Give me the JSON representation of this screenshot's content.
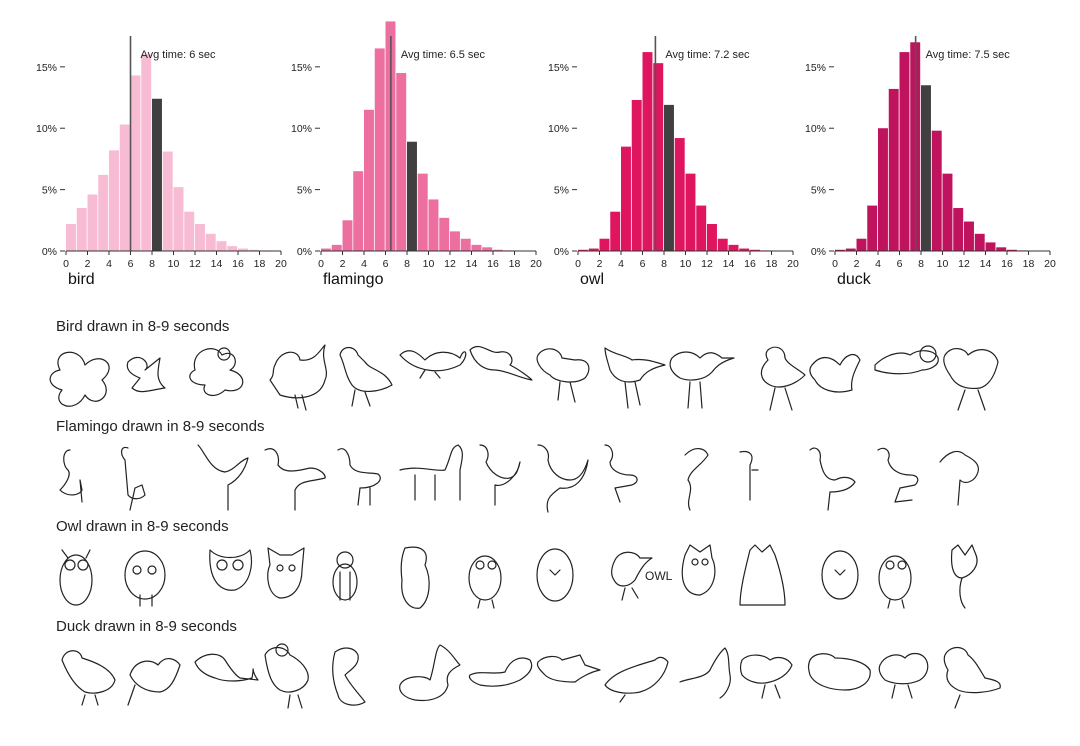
{
  "chart_data": [
    {
      "type": "bar",
      "label": "bird",
      "avg_label": "Avg time: 6 sec",
      "avg_value": 6,
      "color": "#f7bcd4",
      "highlight_color": "#404040",
      "highlight_bin": 8,
      "bin_width": 1,
      "bins": [
        0,
        1,
        2,
        3,
        4,
        5,
        6,
        7,
        8,
        9,
        10,
        11,
        12,
        13,
        14,
        15,
        16,
        17,
        18,
        19
      ],
      "values": [
        2.2,
        3.5,
        4.6,
        6.2,
        8.2,
        10.3,
        14.3,
        16.0,
        12.4,
        8.1,
        5.2,
        3.2,
        2.2,
        1.4,
        0.8,
        0.4,
        0.2,
        0.1,
        0.05,
        0.0
      ],
      "xlim": [
        0,
        20
      ],
      "ylim": [
        0,
        18
      ],
      "x_ticks": [
        "0",
        "2",
        "4",
        "6",
        "8",
        "10",
        "12",
        "14",
        "16",
        "18",
        "20"
      ],
      "y_ticks": [
        "0%",
        "5%",
        "10%",
        "15%"
      ]
    },
    {
      "type": "bar",
      "label": "flamingo",
      "avg_label": "Avg time: 6.5 sec",
      "avg_value": 6.5,
      "color": "#ec6fa0",
      "highlight_color": "#404040",
      "highlight_bin": 8,
      "bin_width": 1,
      "bins": [
        0,
        1,
        2,
        3,
        4,
        5,
        6,
        7,
        8,
        9,
        10,
        11,
        12,
        13,
        14,
        15,
        16,
        17,
        18,
        19
      ],
      "values": [
        0.2,
        0.5,
        2.5,
        6.5,
        11.5,
        16.5,
        18.7,
        14.5,
        8.9,
        6.3,
        4.2,
        2.7,
        1.6,
        1.0,
        0.5,
        0.3,
        0.1,
        0.05,
        0.0,
        0.0
      ],
      "xlim": [
        0,
        20
      ],
      "ylim": [
        0,
        18
      ],
      "x_ticks": [
        "0",
        "2",
        "4",
        "6",
        "8",
        "10",
        "12",
        "14",
        "16",
        "18",
        "20"
      ],
      "y_ticks": [
        "0%",
        "5%",
        "10%",
        "15%"
      ]
    },
    {
      "type": "bar",
      "label": "owl",
      "avg_label": "Avg time: 7.2 sec",
      "avg_value": 7.2,
      "color": "#e0155f",
      "highlight_color": "#404040",
      "highlight_bin": 8,
      "bin_width": 1,
      "bins": [
        0,
        1,
        2,
        3,
        4,
        5,
        6,
        7,
        8,
        9,
        10,
        11,
        12,
        13,
        14,
        15,
        16,
        17,
        18,
        19
      ],
      "values": [
        0.1,
        0.2,
        1.0,
        3.2,
        8.5,
        12.3,
        16.2,
        15.3,
        11.9,
        9.2,
        6.3,
        3.7,
        2.2,
        1.0,
        0.5,
        0.2,
        0.1,
        0.05,
        0.0,
        0.0
      ],
      "xlim": [
        0,
        20
      ],
      "ylim": [
        0,
        18
      ],
      "x_ticks": [
        "0",
        "2",
        "4",
        "6",
        "8",
        "10",
        "12",
        "14",
        "16",
        "18",
        "20"
      ],
      "y_ticks": [
        "0%",
        "5%",
        "10%",
        "15%"
      ]
    },
    {
      "type": "bar",
      "label": "duck",
      "avg_label": "Avg time: 7.5 sec",
      "avg_value": 7.5,
      "color": "#c0135e",
      "highlight_color": "#404040",
      "highlight_bin": 8,
      "bin_width": 1,
      "bins": [
        0,
        1,
        2,
        3,
        4,
        5,
        6,
        7,
        8,
        9,
        10,
        11,
        12,
        13,
        14,
        15,
        16,
        17,
        18,
        19
      ],
      "values": [
        0.1,
        0.2,
        1.0,
        3.7,
        10.0,
        13.2,
        16.2,
        17.0,
        13.5,
        9.8,
        6.3,
        3.5,
        2.4,
        1.4,
        0.7,
        0.3,
        0.1,
        0.05,
        0.0,
        0.0
      ],
      "xlim": [
        0,
        20
      ],
      "ylim": [
        0,
        18
      ],
      "x_ticks": [
        "0",
        "2",
        "4",
        "6",
        "8",
        "10",
        "12",
        "14",
        "16",
        "18",
        "20"
      ],
      "y_ticks": [
        "0%",
        "5%",
        "10%",
        "15%"
      ]
    }
  ],
  "sections": [
    {
      "title": "Bird drawn in 8-9 seconds"
    },
    {
      "title": "Flamingo drawn in 8-9 seconds"
    },
    {
      "title": "Owl drawn in 8-9 seconds",
      "doodle_text": "OWL"
    },
    {
      "title": "Duck drawn in 8-9 seconds"
    }
  ]
}
